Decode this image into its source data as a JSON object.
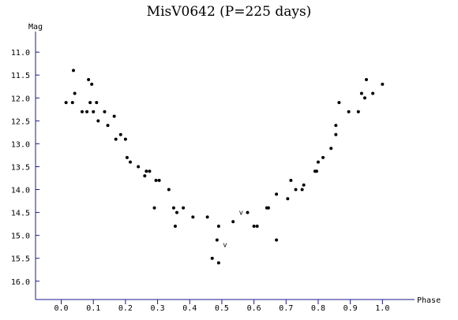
{
  "chart_data": {
    "type": "scatter",
    "title": "MisV0642 (P=225 days)",
    "xlabel": "Phase",
    "ylabel": "Mag",
    "xlim": [
      -0.08,
      1.1
    ],
    "ylim": [
      10.55,
      16.4
    ],
    "y_inverted": true,
    "xticks": [
      "0.0",
      "0.1",
      "0.2",
      "0.3",
      "0.4",
      "0.5",
      "0.6",
      "0.7",
      "0.8",
      "0.9",
      "1.0"
    ],
    "yticks": [
      "11.0",
      "11.5",
      "12.0",
      "12.5",
      "13.0",
      "13.5",
      "14.0",
      "14.5",
      "15.0",
      "15.5",
      "16.0"
    ],
    "grid": false,
    "points": [
      {
        "x": 0.015,
        "y": 12.1
      },
      {
        "x": 0.035,
        "y": 12.1
      },
      {
        "x": 0.038,
        "y": 11.4
      },
      {
        "x": 0.042,
        "y": 11.9
      },
      {
        "x": 0.065,
        "y": 12.3
      },
      {
        "x": 0.08,
        "y": 12.3
      },
      {
        "x": 0.085,
        "y": 11.6
      },
      {
        "x": 0.09,
        "y": 12.1
      },
      {
        "x": 0.095,
        "y": 11.7
      },
      {
        "x": 0.1,
        "y": 12.3
      },
      {
        "x": 0.11,
        "y": 12.1
      },
      {
        "x": 0.115,
        "y": 12.5
      },
      {
        "x": 0.135,
        "y": 12.3
      },
      {
        "x": 0.145,
        "y": 12.6
      },
      {
        "x": 0.165,
        "y": 12.4
      },
      {
        "x": 0.17,
        "y": 12.9
      },
      {
        "x": 0.185,
        "y": 12.8
      },
      {
        "x": 0.2,
        "y": 12.9
      },
      {
        "x": 0.205,
        "y": 13.3
      },
      {
        "x": 0.215,
        "y": 13.4
      },
      {
        "x": 0.24,
        "y": 13.5
      },
      {
        "x": 0.26,
        "y": 13.7
      },
      {
        "x": 0.265,
        "y": 13.6
      },
      {
        "x": 0.275,
        "y": 13.6
      },
      {
        "x": 0.29,
        "y": 14.4
      },
      {
        "x": 0.295,
        "y": 13.8
      },
      {
        "x": 0.305,
        "y": 13.8
      },
      {
        "x": 0.335,
        "y": 14.0
      },
      {
        "x": 0.35,
        "y": 14.4
      },
      {
        "x": 0.355,
        "y": 14.8
      },
      {
        "x": 0.36,
        "y": 14.5
      },
      {
        "x": 0.38,
        "y": 14.4
      },
      {
        "x": 0.41,
        "y": 14.6
      },
      {
        "x": 0.455,
        "y": 14.6
      },
      {
        "x": 0.47,
        "y": 15.5
      },
      {
        "x": 0.485,
        "y": 15.1
      },
      {
        "x": 0.49,
        "y": 14.8
      },
      {
        "x": 0.49,
        "y": 15.6
      },
      {
        "x": 0.535,
        "y": 14.7
      },
      {
        "x": 0.58,
        "y": 14.5
      },
      {
        "x": 0.6,
        "y": 14.8
      },
      {
        "x": 0.61,
        "y": 14.8
      },
      {
        "x": 0.64,
        "y": 14.4
      },
      {
        "x": 0.645,
        "y": 14.4
      },
      {
        "x": 0.67,
        "y": 14.1
      },
      {
        "x": 0.67,
        "y": 15.1
      },
      {
        "x": 0.705,
        "y": 14.2
      },
      {
        "x": 0.715,
        "y": 13.8
      },
      {
        "x": 0.73,
        "y": 14.0
      },
      {
        "x": 0.75,
        "y": 14.0
      },
      {
        "x": 0.755,
        "y": 13.9
      },
      {
        "x": 0.79,
        "y": 13.6
      },
      {
        "x": 0.795,
        "y": 13.6
      },
      {
        "x": 0.8,
        "y": 13.4
      },
      {
        "x": 0.815,
        "y": 13.3
      },
      {
        "x": 0.84,
        "y": 13.1
      },
      {
        "x": 0.855,
        "y": 12.8
      },
      {
        "x": 0.855,
        "y": 12.6
      },
      {
        "x": 0.865,
        "y": 12.1
      },
      {
        "x": 0.895,
        "y": 12.3
      },
      {
        "x": 0.925,
        "y": 12.3
      },
      {
        "x": 0.935,
        "y": 11.9
      },
      {
        "x": 0.945,
        "y": 12.0
      },
      {
        "x": 0.95,
        "y": 11.6
      },
      {
        "x": 0.97,
        "y": 11.9
      },
      {
        "x": 1.0,
        "y": 11.7
      }
    ],
    "upper_limits": [
      {
        "x": 0.56,
        "y": 14.5
      },
      {
        "x": 0.51,
        "y": 15.2
      }
    ],
    "upper_limit_marker": "v"
  }
}
